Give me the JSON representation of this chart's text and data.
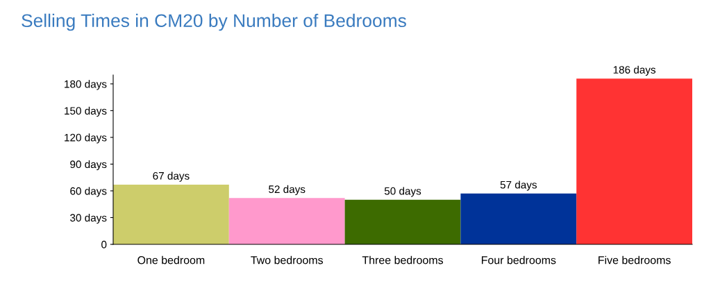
{
  "chart_data": {
    "type": "bar",
    "title": "Selling Times in CM20 by Number of Bedrooms",
    "categories": [
      "One bedroom",
      "Two bedrooms",
      "Three bedrooms",
      "Four bedrooms",
      "Five bedrooms"
    ],
    "values": [
      67,
      52,
      50,
      57,
      186
    ],
    "value_labels": [
      "67 days",
      "52 days",
      "50 days",
      "57 days",
      "186 days"
    ],
    "colors": [
      "#cdcd6b",
      "#ff99cc",
      "#3d6b00",
      "#003399",
      "#ff3333"
    ],
    "ylim": [
      0,
      190
    ],
    "yticks": [
      0,
      {
        "value": 30,
        "label": "30 days"
      },
      {
        "value": 60,
        "label": "60 days"
      },
      {
        "value": 90,
        "label": "90 days"
      },
      {
        "value": 120,
        "label": "120 days"
      },
      {
        "value": 150,
        "label": "150 days"
      },
      {
        "value": 180,
        "label": "180 days"
      }
    ],
    "grid": false,
    "legend": false
  }
}
